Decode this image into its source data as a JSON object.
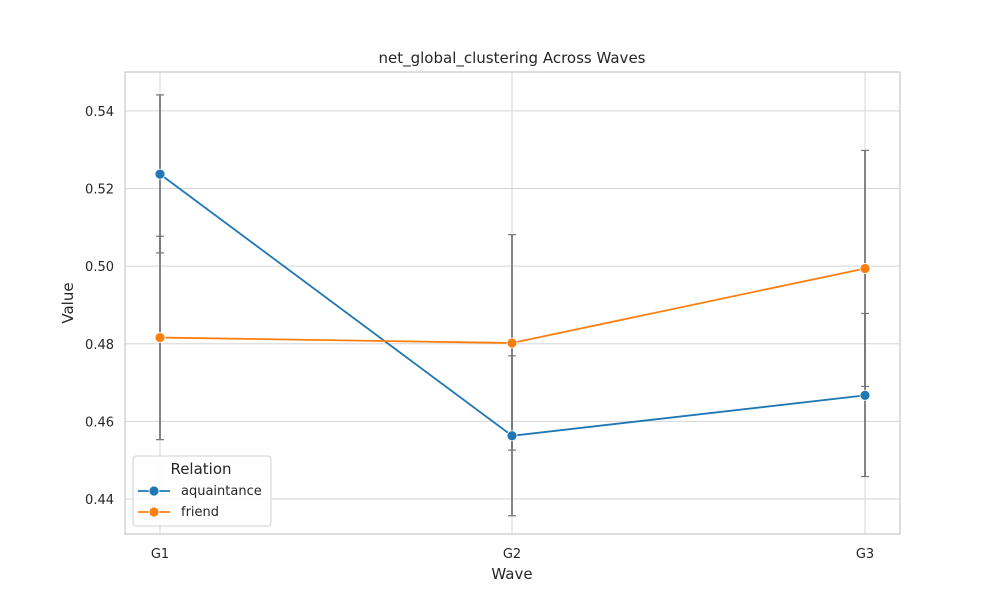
{
  "chart_data": {
    "type": "line",
    "title": "net_global_clustering Across Waves",
    "xlabel": "Wave",
    "ylabel": "Value",
    "categories": [
      "G1",
      "G2",
      "G3"
    ],
    "ylim": [
      0.431,
      0.55
    ],
    "yticks": [
      "0.44",
      "0.46",
      "0.48",
      "0.50",
      "0.52",
      "0.54"
    ],
    "grid": true,
    "legend": {
      "title": "Relation",
      "placement": "lower-left"
    },
    "series": [
      {
        "name": "aquaintance",
        "color": "#1f77b4",
        "values": [
          0.5237,
          0.4563,
          0.4667
        ],
        "error_low": [
          0.5034,
          0.4357,
          0.4458
        ],
        "error_high": [
          0.5441,
          0.4769,
          0.4878
        ]
      },
      {
        "name": "friend",
        "color": "#ff7f0e",
        "values": [
          0.4816,
          0.4802,
          0.4994
        ],
        "error_low": [
          0.4553,
          0.4526,
          0.469
        ],
        "error_high": [
          0.5077,
          0.5081,
          0.5298
        ]
      }
    ],
    "errorbar_color": "#777777"
  }
}
